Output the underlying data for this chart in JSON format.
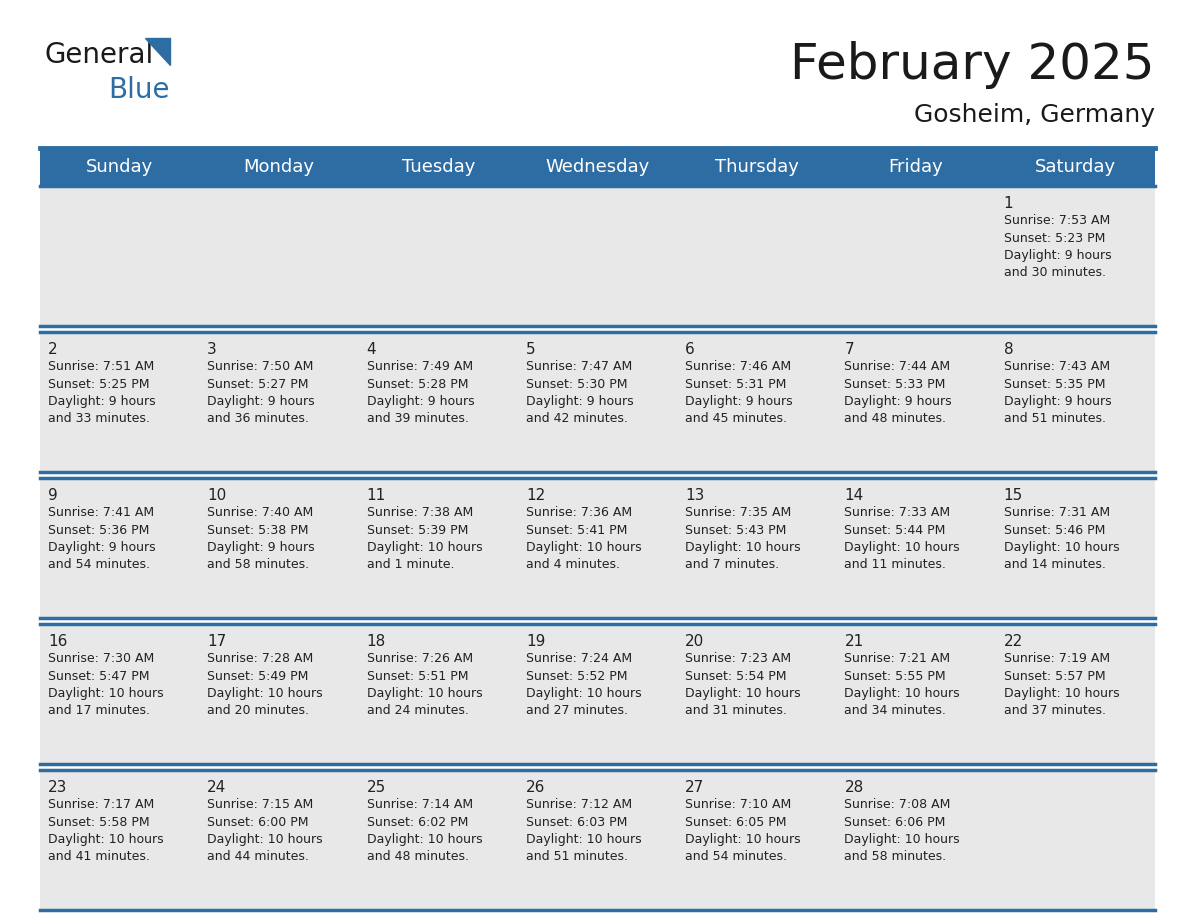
{
  "title": "February 2025",
  "subtitle": "Gosheim, Germany",
  "header_bg_color": "#2E6DA4",
  "header_text_color": "#FFFFFF",
  "cell_bg_color": "#E8E8E8",
  "row_sep_color": "#FFFFFF",
  "border_color": "#2E6DA4",
  "week_line_color": "#2E6DA4",
  "day_number_color": "#222222",
  "cell_text_color": "#222222",
  "days_of_week": [
    "Sunday",
    "Monday",
    "Tuesday",
    "Wednesday",
    "Thursday",
    "Friday",
    "Saturday"
  ],
  "calendar_data": [
    [
      {
        "day": null,
        "info": null
      },
      {
        "day": null,
        "info": null
      },
      {
        "day": null,
        "info": null
      },
      {
        "day": null,
        "info": null
      },
      {
        "day": null,
        "info": null
      },
      {
        "day": null,
        "info": null
      },
      {
        "day": "1",
        "info": "Sunrise: 7:53 AM\nSunset: 5:23 PM\nDaylight: 9 hours\nand 30 minutes."
      }
    ],
    [
      {
        "day": "2",
        "info": "Sunrise: 7:51 AM\nSunset: 5:25 PM\nDaylight: 9 hours\nand 33 minutes."
      },
      {
        "day": "3",
        "info": "Sunrise: 7:50 AM\nSunset: 5:27 PM\nDaylight: 9 hours\nand 36 minutes."
      },
      {
        "day": "4",
        "info": "Sunrise: 7:49 AM\nSunset: 5:28 PM\nDaylight: 9 hours\nand 39 minutes."
      },
      {
        "day": "5",
        "info": "Sunrise: 7:47 AM\nSunset: 5:30 PM\nDaylight: 9 hours\nand 42 minutes."
      },
      {
        "day": "6",
        "info": "Sunrise: 7:46 AM\nSunset: 5:31 PM\nDaylight: 9 hours\nand 45 minutes."
      },
      {
        "day": "7",
        "info": "Sunrise: 7:44 AM\nSunset: 5:33 PM\nDaylight: 9 hours\nand 48 minutes."
      },
      {
        "day": "8",
        "info": "Sunrise: 7:43 AM\nSunset: 5:35 PM\nDaylight: 9 hours\nand 51 minutes."
      }
    ],
    [
      {
        "day": "9",
        "info": "Sunrise: 7:41 AM\nSunset: 5:36 PM\nDaylight: 9 hours\nand 54 minutes."
      },
      {
        "day": "10",
        "info": "Sunrise: 7:40 AM\nSunset: 5:38 PM\nDaylight: 9 hours\nand 58 minutes."
      },
      {
        "day": "11",
        "info": "Sunrise: 7:38 AM\nSunset: 5:39 PM\nDaylight: 10 hours\nand 1 minute."
      },
      {
        "day": "12",
        "info": "Sunrise: 7:36 AM\nSunset: 5:41 PM\nDaylight: 10 hours\nand 4 minutes."
      },
      {
        "day": "13",
        "info": "Sunrise: 7:35 AM\nSunset: 5:43 PM\nDaylight: 10 hours\nand 7 minutes."
      },
      {
        "day": "14",
        "info": "Sunrise: 7:33 AM\nSunset: 5:44 PM\nDaylight: 10 hours\nand 11 minutes."
      },
      {
        "day": "15",
        "info": "Sunrise: 7:31 AM\nSunset: 5:46 PM\nDaylight: 10 hours\nand 14 minutes."
      }
    ],
    [
      {
        "day": "16",
        "info": "Sunrise: 7:30 AM\nSunset: 5:47 PM\nDaylight: 10 hours\nand 17 minutes."
      },
      {
        "day": "17",
        "info": "Sunrise: 7:28 AM\nSunset: 5:49 PM\nDaylight: 10 hours\nand 20 minutes."
      },
      {
        "day": "18",
        "info": "Sunrise: 7:26 AM\nSunset: 5:51 PM\nDaylight: 10 hours\nand 24 minutes."
      },
      {
        "day": "19",
        "info": "Sunrise: 7:24 AM\nSunset: 5:52 PM\nDaylight: 10 hours\nand 27 minutes."
      },
      {
        "day": "20",
        "info": "Sunrise: 7:23 AM\nSunset: 5:54 PM\nDaylight: 10 hours\nand 31 minutes."
      },
      {
        "day": "21",
        "info": "Sunrise: 7:21 AM\nSunset: 5:55 PM\nDaylight: 10 hours\nand 34 minutes."
      },
      {
        "day": "22",
        "info": "Sunrise: 7:19 AM\nSunset: 5:57 PM\nDaylight: 10 hours\nand 37 minutes."
      }
    ],
    [
      {
        "day": "23",
        "info": "Sunrise: 7:17 AM\nSunset: 5:58 PM\nDaylight: 10 hours\nand 41 minutes."
      },
      {
        "day": "24",
        "info": "Sunrise: 7:15 AM\nSunset: 6:00 PM\nDaylight: 10 hours\nand 44 minutes."
      },
      {
        "day": "25",
        "info": "Sunrise: 7:14 AM\nSunset: 6:02 PM\nDaylight: 10 hours\nand 48 minutes."
      },
      {
        "day": "26",
        "info": "Sunrise: 7:12 AM\nSunset: 6:03 PM\nDaylight: 10 hours\nand 51 minutes."
      },
      {
        "day": "27",
        "info": "Sunrise: 7:10 AM\nSunset: 6:05 PM\nDaylight: 10 hours\nand 54 minutes."
      },
      {
        "day": "28",
        "info": "Sunrise: 7:08 AM\nSunset: 6:06 PM\nDaylight: 10 hours\nand 58 minutes."
      },
      {
        "day": null,
        "info": null
      }
    ]
  ],
  "logo_color_general": "#1a1a1a",
  "logo_color_blue": "#2E6DA4",
  "title_fontsize": 36,
  "subtitle_fontsize": 18,
  "header_fontsize": 13,
  "day_number_fontsize": 11,
  "cell_text_fontsize": 9
}
